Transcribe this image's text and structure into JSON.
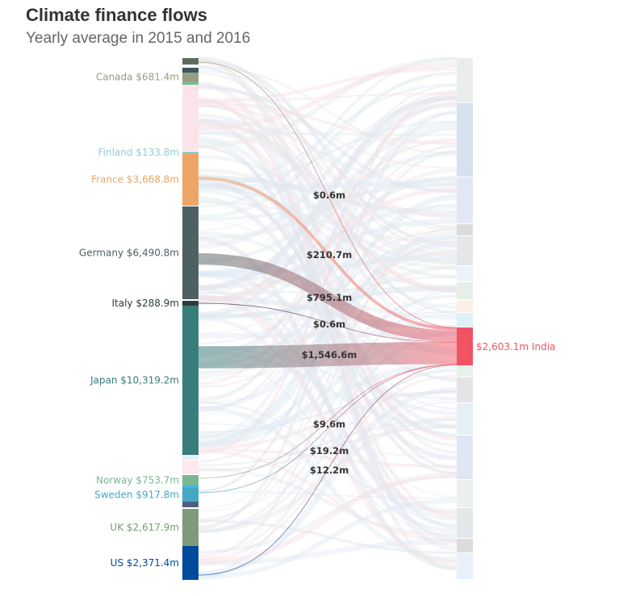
{
  "header": {
    "title": "Climate finance flows",
    "subtitle": "Yearly average in 2015 and 2016"
  },
  "chart_data": {
    "type": "sankey",
    "sources": [
      {
        "name": "Canada",
        "label": "Canada $681.4m",
        "value": 681.4,
        "color": "#959d82"
      },
      {
        "name": "Finland",
        "label": "Finland $133.8m",
        "value": 133.8,
        "color": "#8fd0c8"
      },
      {
        "name": "France",
        "label": "France $3,668.8m",
        "value": 3668.8,
        "color": "#eda566"
      },
      {
        "name": "Germany",
        "label": "Germany $6,490.8m",
        "value": 6490.8,
        "color": "#4e6062"
      },
      {
        "name": "Italy",
        "label": "Italy $288.9m",
        "value": 288.9,
        "color": "#2d3a3d"
      },
      {
        "name": "Japan",
        "label": "Japan $10,319.2m",
        "value": 10319.2,
        "color": "#377d7a"
      },
      {
        "name": "Norway",
        "label": "Norway $753.7m",
        "value": 753.7,
        "color": "#7ab694"
      },
      {
        "name": "Sweden",
        "label": "Sweden $917.8m",
        "value": 917.8,
        "color": "#44a8c4"
      },
      {
        "name": "UK",
        "label": "UK $2,617.9m",
        "value": 2617.9,
        "color": "#7d9a7a"
      },
      {
        "name": "US",
        "label": "US $2,371.4m",
        "value": 2371.4,
        "color": "#004a9c"
      }
    ],
    "highlighted_target": {
      "name": "India",
      "label": "$2,603.1m India",
      "value": 2603.1,
      "color": "#f05464"
    },
    "flows": [
      {
        "source": "Canada",
        "target": "India",
        "value": 0.6,
        "label": "$0.6m"
      },
      {
        "source": "France",
        "target": "India",
        "value": 210.7,
        "label": "$210.7m"
      },
      {
        "source": "Germany",
        "target": "India",
        "value": 795.1,
        "label": "$795.1m"
      },
      {
        "source": "Italy",
        "target": "India",
        "value": 0.6,
        "label": "$0.6m"
      },
      {
        "source": "Japan",
        "target": "India",
        "value": 1546.6,
        "label": "$1,546.6m"
      },
      {
        "source": "Norway",
        "target": "India",
        "value": 9.6,
        "label": "$9.6m"
      },
      {
        "source": "Sweden",
        "target": "India",
        "value": 19.2,
        "label": "$19.2m"
      },
      {
        "source": "US",
        "target": "India",
        "value": 12.2,
        "label": "$12.2m"
      }
    ]
  }
}
